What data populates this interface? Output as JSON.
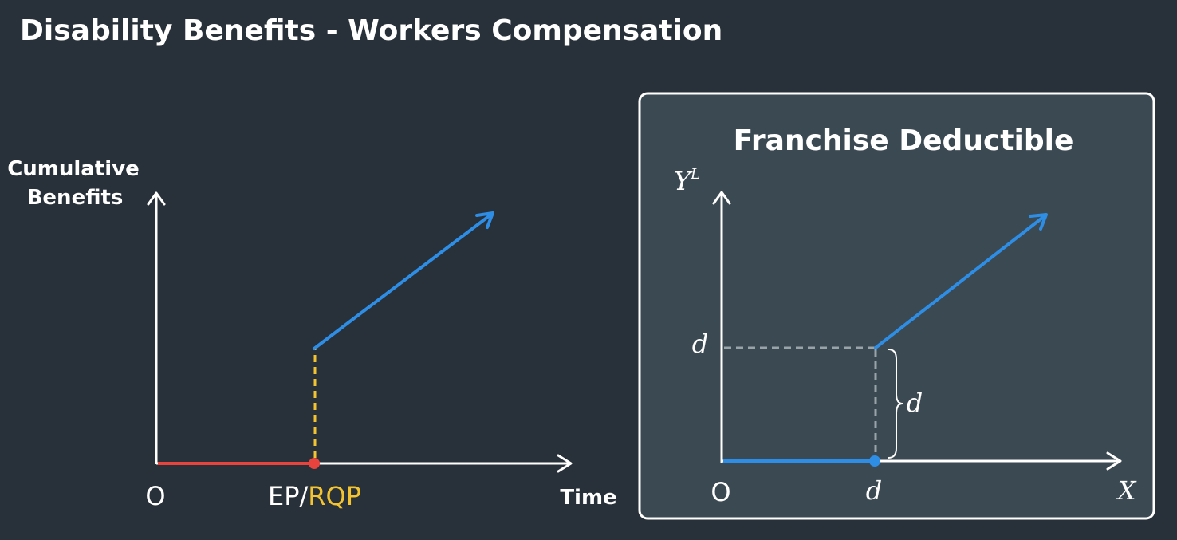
{
  "page_title": "Disability Benefits - Workers Compensation",
  "colors": {
    "background": "#283139",
    "panel": "#3b4952",
    "axis": "#ffffff",
    "benefit_line": "#2e8ee6",
    "waiting_segment": "#e8433c",
    "rqp_text": "#f3c430",
    "dashed_yellow": "#f3c430",
    "dashed_gray": "#9aa3a8"
  },
  "left_diagram": {
    "y_axis_label_line1": "Cumulative",
    "y_axis_label_line2": "Benefits",
    "x_axis_label": "Time",
    "origin_label": "O",
    "ep_label": "EP/",
    "rqp_label": "RQP"
  },
  "right_panel": {
    "title": "Franchise Deductible",
    "y_axis_label": "Y",
    "y_axis_superscript": "L",
    "x_axis_label": "X",
    "origin_label": "O",
    "x_tick_label": "d",
    "y_tick_label": "d",
    "brace_label": "d"
  }
}
